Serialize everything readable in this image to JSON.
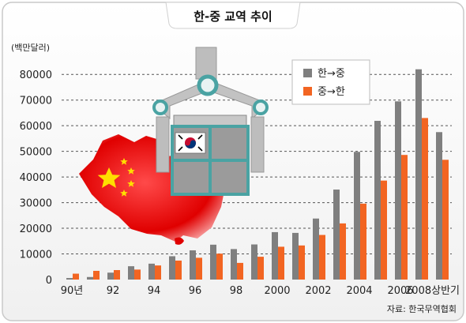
{
  "chart_data": {
    "type": "bar",
    "title": "한-중 교역 추이",
    "unit_label": "(백만달러)",
    "source": "자료: 한국무역협회",
    "ylim": [
      0,
      85000
    ],
    "yticks": [
      0,
      10000,
      20000,
      30000,
      40000,
      50000,
      60000,
      70000,
      80000
    ],
    "grid": true,
    "legend_position": "top-right",
    "categories": [
      "1990",
      "1991",
      "1992",
      "1993",
      "1994",
      "1995",
      "1996",
      "1997",
      "1998",
      "1999",
      "2000",
      "2001",
      "2002",
      "2003",
      "2004",
      "2005",
      "2006",
      "2007",
      "2008상반기"
    ],
    "tick_labels": [
      "90년",
      "92",
      "94",
      "96",
      "98",
      "2000",
      "2002",
      "2004",
      "2006",
      "2008상반기"
    ],
    "tick_label_indices": [
      0,
      2,
      4,
      6,
      8,
      10,
      12,
      14,
      16,
      18
    ],
    "series": [
      {
        "name": "한→중",
        "color": "#7f7f7f",
        "values": [
          600,
          1000,
          2700,
          5200,
          6200,
          9100,
          11400,
          13600,
          11900,
          13700,
          18500,
          18200,
          23800,
          35100,
          49800,
          61900,
          69500,
          82000,
          57500
        ]
      },
      {
        "name": "중→한",
        "color": "#f26522",
        "values": [
          2300,
          3400,
          3700,
          3900,
          5500,
          7400,
          8500,
          10100,
          6500,
          8900,
          12800,
          13300,
          17400,
          21900,
          29600,
          38600,
          48600,
          63000,
          46700
        ]
      }
    ],
    "decoration": {
      "china_map_color": "#d40000",
      "crane_color": "#b9b9b9",
      "container_color": "#9b9b9b",
      "container_frame_color": "#4aa3a3",
      "korea_flag_icon": "korea-flag-icon",
      "china_star_icon": "china-star-icon"
    }
  }
}
